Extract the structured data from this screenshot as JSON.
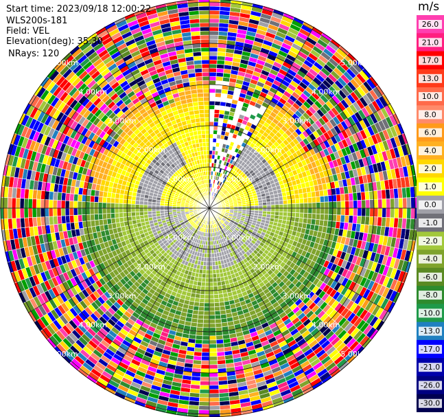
{
  "header": {
    "start_time": "Start time: 2023/09/18 12:00:22",
    "instrument": "WLS200s-181",
    "field": "Field: VEL",
    "elevation": "Elevation(deg): 35.30",
    "nrays": "NRays: 120"
  },
  "colorbar": {
    "unit": "m/s",
    "ticks": [
      "26.0",
      "21.0",
      "17.0",
      "13.0",
      "10.0",
      "8.0",
      "6.0",
      "4.0",
      "2.0",
      "1.0",
      "0.0",
      "-1.0",
      "-2.0",
      "-4.0",
      "-6.0",
      "-8.0",
      "-10.0",
      "-13.0",
      "-17.0",
      "-21.0",
      "-26.0",
      "-30.0"
    ],
    "colors": [
      "#ff3fb0",
      "#ff1f80",
      "#ff0000",
      "#ff3a1a",
      "#ff6a4a",
      "#ff8a6a",
      "#ff9a1a",
      "#ffb020",
      "#ffd800",
      "#ffff00",
      "#a0a0a8",
      "#707078",
      "#a2c83a",
      "#7fa32c",
      "#5a8a22",
      "#2e8b2e",
      "#1f9a4a",
      "#2080c0",
      "#0000ff",
      "#0000aa",
      "#000080",
      "#000050"
    ]
  },
  "chart_data": {
    "type": "ppi",
    "field": "VEL",
    "units": "m/s",
    "nrays": 120,
    "elevation_deg": 35.3,
    "range_rings_km": [
      1.0,
      2.0,
      3.0,
      4.0,
      5.0
    ],
    "range_labels": [
      "1.00km",
      "2.00km",
      "3.00km",
      "4.00km",
      "5.00km"
    ],
    "grid": true,
    "colorbar_placement": "right"
  }
}
